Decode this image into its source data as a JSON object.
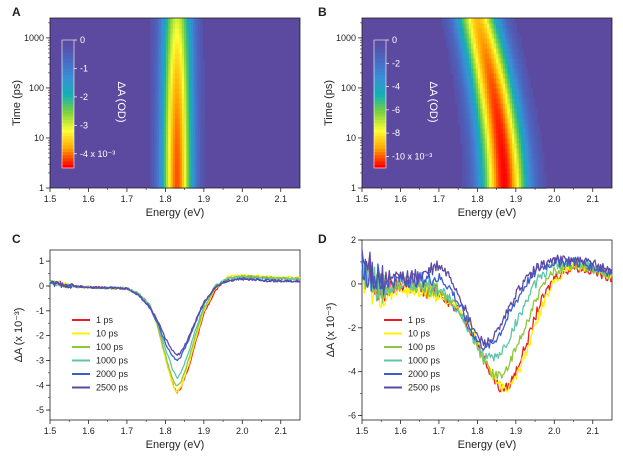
{
  "colors": {
    "background": "#5b4aa0",
    "ink": "#231f20",
    "colormap": [
      "#ff0000",
      "#ffa500",
      "#ffff33",
      "#7fd23a",
      "#13b0b5",
      "#3a8fd6",
      "#4a68c2",
      "#5b4aa0"
    ]
  },
  "chart_data": [
    {
      "panel": "A",
      "type": "heatmap",
      "xlabel": "Energy (eV)",
      "ylabel": "Time (ps)",
      "xlim": [
        1.5,
        2.15
      ],
      "ylim_log": [
        1,
        2500
      ],
      "xticks": [
        "1.5",
        "1.6",
        "1.7",
        "1.8",
        "1.9",
        "2.0",
        "2.1"
      ],
      "yticks": [
        "1",
        "10",
        "100",
        "1000"
      ],
      "colorbar_label": "ΔA (OD)",
      "colorbar_ticks": [
        "0",
        "-1",
        "-2",
        "-3",
        "-4 x 10⁻³"
      ],
      "colorbar_range": [
        -4.5,
        0
      ],
      "peak_center_ev": [
        1.83,
        1.83
      ],
      "peak_width_ev": [
        0.04,
        0.04
      ],
      "peak_depth": [
        -4.2,
        -3.0
      ]
    },
    {
      "panel": "B",
      "type": "heatmap",
      "xlabel": "Energy (eV)",
      "ylabel": "Time (ps)",
      "xlim": [
        1.5,
        2.15
      ],
      "ylim_log": [
        1,
        2500
      ],
      "xticks": [
        "1.5",
        "1.6",
        "1.7",
        "1.8",
        "1.9",
        "2.0",
        "2.1"
      ],
      "yticks": [
        "1",
        "10",
        "100",
        "1000"
      ],
      "colorbar_label": "ΔA (OD)",
      "colorbar_ticks": [
        "0",
        "-2",
        "-4",
        "-6",
        "-8",
        "-10 x 10⁻³"
      ],
      "colorbar_range": [
        -11,
        0
      ],
      "peak_center_ev": [
        1.87,
        1.8
      ],
      "peak_width_ev": [
        0.06,
        0.055
      ],
      "peak_depth": [
        -11,
        -9
      ]
    },
    {
      "panel": "C",
      "type": "line",
      "xlabel": "Energy (eV)",
      "ylabel": "ΔA (x 10⁻³)",
      "xlim": [
        1.5,
        2.15
      ],
      "ylim": [
        -5.4,
        1.45
      ],
      "xticks": [
        "1.5",
        "1.6",
        "1.7",
        "1.8",
        "1.9",
        "2.0",
        "2.1"
      ],
      "yticks": [
        "1",
        "0",
        "-1",
        "-2",
        "-3",
        "-4",
        "-5"
      ],
      "x": [
        1.5,
        1.55,
        1.6,
        1.65,
        1.7,
        1.73,
        1.76,
        1.78,
        1.8,
        1.82,
        1.83,
        1.84,
        1.86,
        1.88,
        1.9,
        1.93,
        1.96,
        2.0,
        2.05,
        2.1,
        2.15
      ],
      "series": [
        {
          "name": "1 ps",
          "color": "#ed1c24",
          "values": [
            0.2,
            0.0,
            -0.05,
            -0.08,
            -0.1,
            -0.3,
            -0.8,
            -1.6,
            -2.9,
            -4.0,
            -4.3,
            -4.1,
            -3.3,
            -2.2,
            -1.1,
            -0.2,
            0.3,
            0.4,
            0.35,
            0.3,
            0.3
          ]
        },
        {
          "name": "10 ps",
          "color": "#fff200",
          "values": [
            0.2,
            0.0,
            -0.05,
            -0.08,
            -0.1,
            -0.3,
            -0.8,
            -1.6,
            -2.9,
            -4.0,
            -4.3,
            -4.1,
            -3.2,
            -2.1,
            -1.0,
            -0.1,
            0.35,
            0.45,
            0.4,
            0.35,
            0.35
          ]
        },
        {
          "name": "100 ps",
          "color": "#8dc63f",
          "values": [
            0.15,
            0.0,
            -0.05,
            -0.08,
            -0.1,
            -0.3,
            -0.8,
            -1.6,
            -2.8,
            -3.8,
            -4.05,
            -3.9,
            -3.0,
            -1.9,
            -0.9,
            -0.05,
            0.3,
            0.4,
            0.35,
            0.3,
            0.3
          ]
        },
        {
          "name": "1000 ps",
          "color": "#5fc6a5",
          "values": [
            0.15,
            0.0,
            -0.05,
            -0.07,
            -0.1,
            -0.3,
            -0.8,
            -1.5,
            -2.5,
            -3.4,
            -3.7,
            -3.5,
            -2.7,
            -1.7,
            -0.8,
            0.0,
            0.3,
            0.35,
            0.3,
            0.3,
            0.3
          ]
        },
        {
          "name": "2000 ps",
          "color": "#3a5fcd",
          "values": [
            0.15,
            0.0,
            -0.05,
            -0.07,
            -0.1,
            -0.35,
            -0.9,
            -1.5,
            -2.3,
            -2.85,
            -3.0,
            -2.85,
            -2.2,
            -1.4,
            -0.7,
            -0.05,
            0.2,
            0.3,
            0.25,
            0.2,
            0.2
          ]
        },
        {
          "name": "2500 ps",
          "color": "#5d4aa8",
          "values": [
            0.1,
            0.0,
            -0.05,
            -0.07,
            -0.1,
            -0.35,
            -0.85,
            -1.4,
            -2.1,
            -2.65,
            -2.8,
            -2.7,
            -2.1,
            -1.35,
            -0.65,
            -0.05,
            0.2,
            0.28,
            0.22,
            0.2,
            0.2
          ]
        }
      ]
    },
    {
      "panel": "D",
      "type": "line",
      "xlabel": "Energy (eV)",
      "ylabel": "ΔA (x 10⁻³)",
      "xlim": [
        1.5,
        2.15
      ],
      "ylim": [
        -6.2,
        2.0
      ],
      "xticks": [
        "1.5",
        "1.6",
        "1.7",
        "1.8",
        "1.9",
        "2.0",
        "2.1"
      ],
      "yticks": [
        "2",
        "0",
        "-2",
        "-4",
        "-6"
      ],
      "x": [
        1.5,
        1.55,
        1.6,
        1.65,
        1.7,
        1.73,
        1.76,
        1.78,
        1.8,
        1.82,
        1.84,
        1.86,
        1.88,
        1.9,
        1.93,
        1.96,
        2.0,
        2.05,
        2.1,
        2.15
      ],
      "series": [
        {
          "name": "1 ps",
          "color": "#ed1c24",
          "values": [
            0.5,
            -0.4,
            0.0,
            -0.3,
            -0.4,
            -0.9,
            -1.4,
            -2.0,
            -2.7,
            -3.5,
            -4.3,
            -4.8,
            -4.7,
            -4.0,
            -2.6,
            -1.0,
            0.3,
            0.8,
            0.6,
            0.3
          ]
        },
        {
          "name": "10 ps",
          "color": "#fff200",
          "values": [
            0.3,
            -0.6,
            -0.2,
            -0.4,
            -0.5,
            -0.9,
            -1.4,
            -1.9,
            -2.6,
            -3.4,
            -4.2,
            -4.7,
            -4.8,
            -4.3,
            -3.0,
            -1.4,
            0.2,
            0.9,
            0.7,
            0.4
          ]
        },
        {
          "name": "100 ps",
          "color": "#8dc63f",
          "values": [
            0.5,
            -0.3,
            0.0,
            -0.2,
            -0.3,
            -0.8,
            -1.4,
            -2.1,
            -2.9,
            -3.6,
            -4.1,
            -4.2,
            -3.8,
            -3.0,
            -1.7,
            -0.4,
            0.6,
            0.9,
            0.7,
            0.4
          ]
        },
        {
          "name": "1000 ps",
          "color": "#5fc6a5",
          "values": [
            0.6,
            -0.2,
            0.1,
            -0.1,
            -0.2,
            -0.7,
            -1.5,
            -2.2,
            -2.9,
            -3.3,
            -3.4,
            -3.2,
            -2.6,
            -1.8,
            -0.7,
            0.3,
            0.9,
            1.0,
            0.8,
            0.5
          ]
        },
        {
          "name": "2000 ps",
          "color": "#3a5fcd",
          "values": [
            0.8,
            0.1,
            0.2,
            0.2,
            0.3,
            -0.2,
            -1.2,
            -2.0,
            -2.6,
            -2.9,
            -2.7,
            -2.2,
            -1.5,
            -0.8,
            0.1,
            0.7,
            1.0,
            1.0,
            0.8,
            0.5
          ]
        },
        {
          "name": "2500 ps",
          "color": "#5d4aa8",
          "values": [
            1.0,
            0.2,
            0.3,
            0.3,
            0.8,
            0.3,
            -0.8,
            -1.7,
            -2.4,
            -2.7,
            -2.5,
            -2.0,
            -1.2,
            -0.5,
            0.3,
            0.8,
            1.1,
            1.1,
            0.9,
            0.6
          ]
        }
      ]
    }
  ]
}
